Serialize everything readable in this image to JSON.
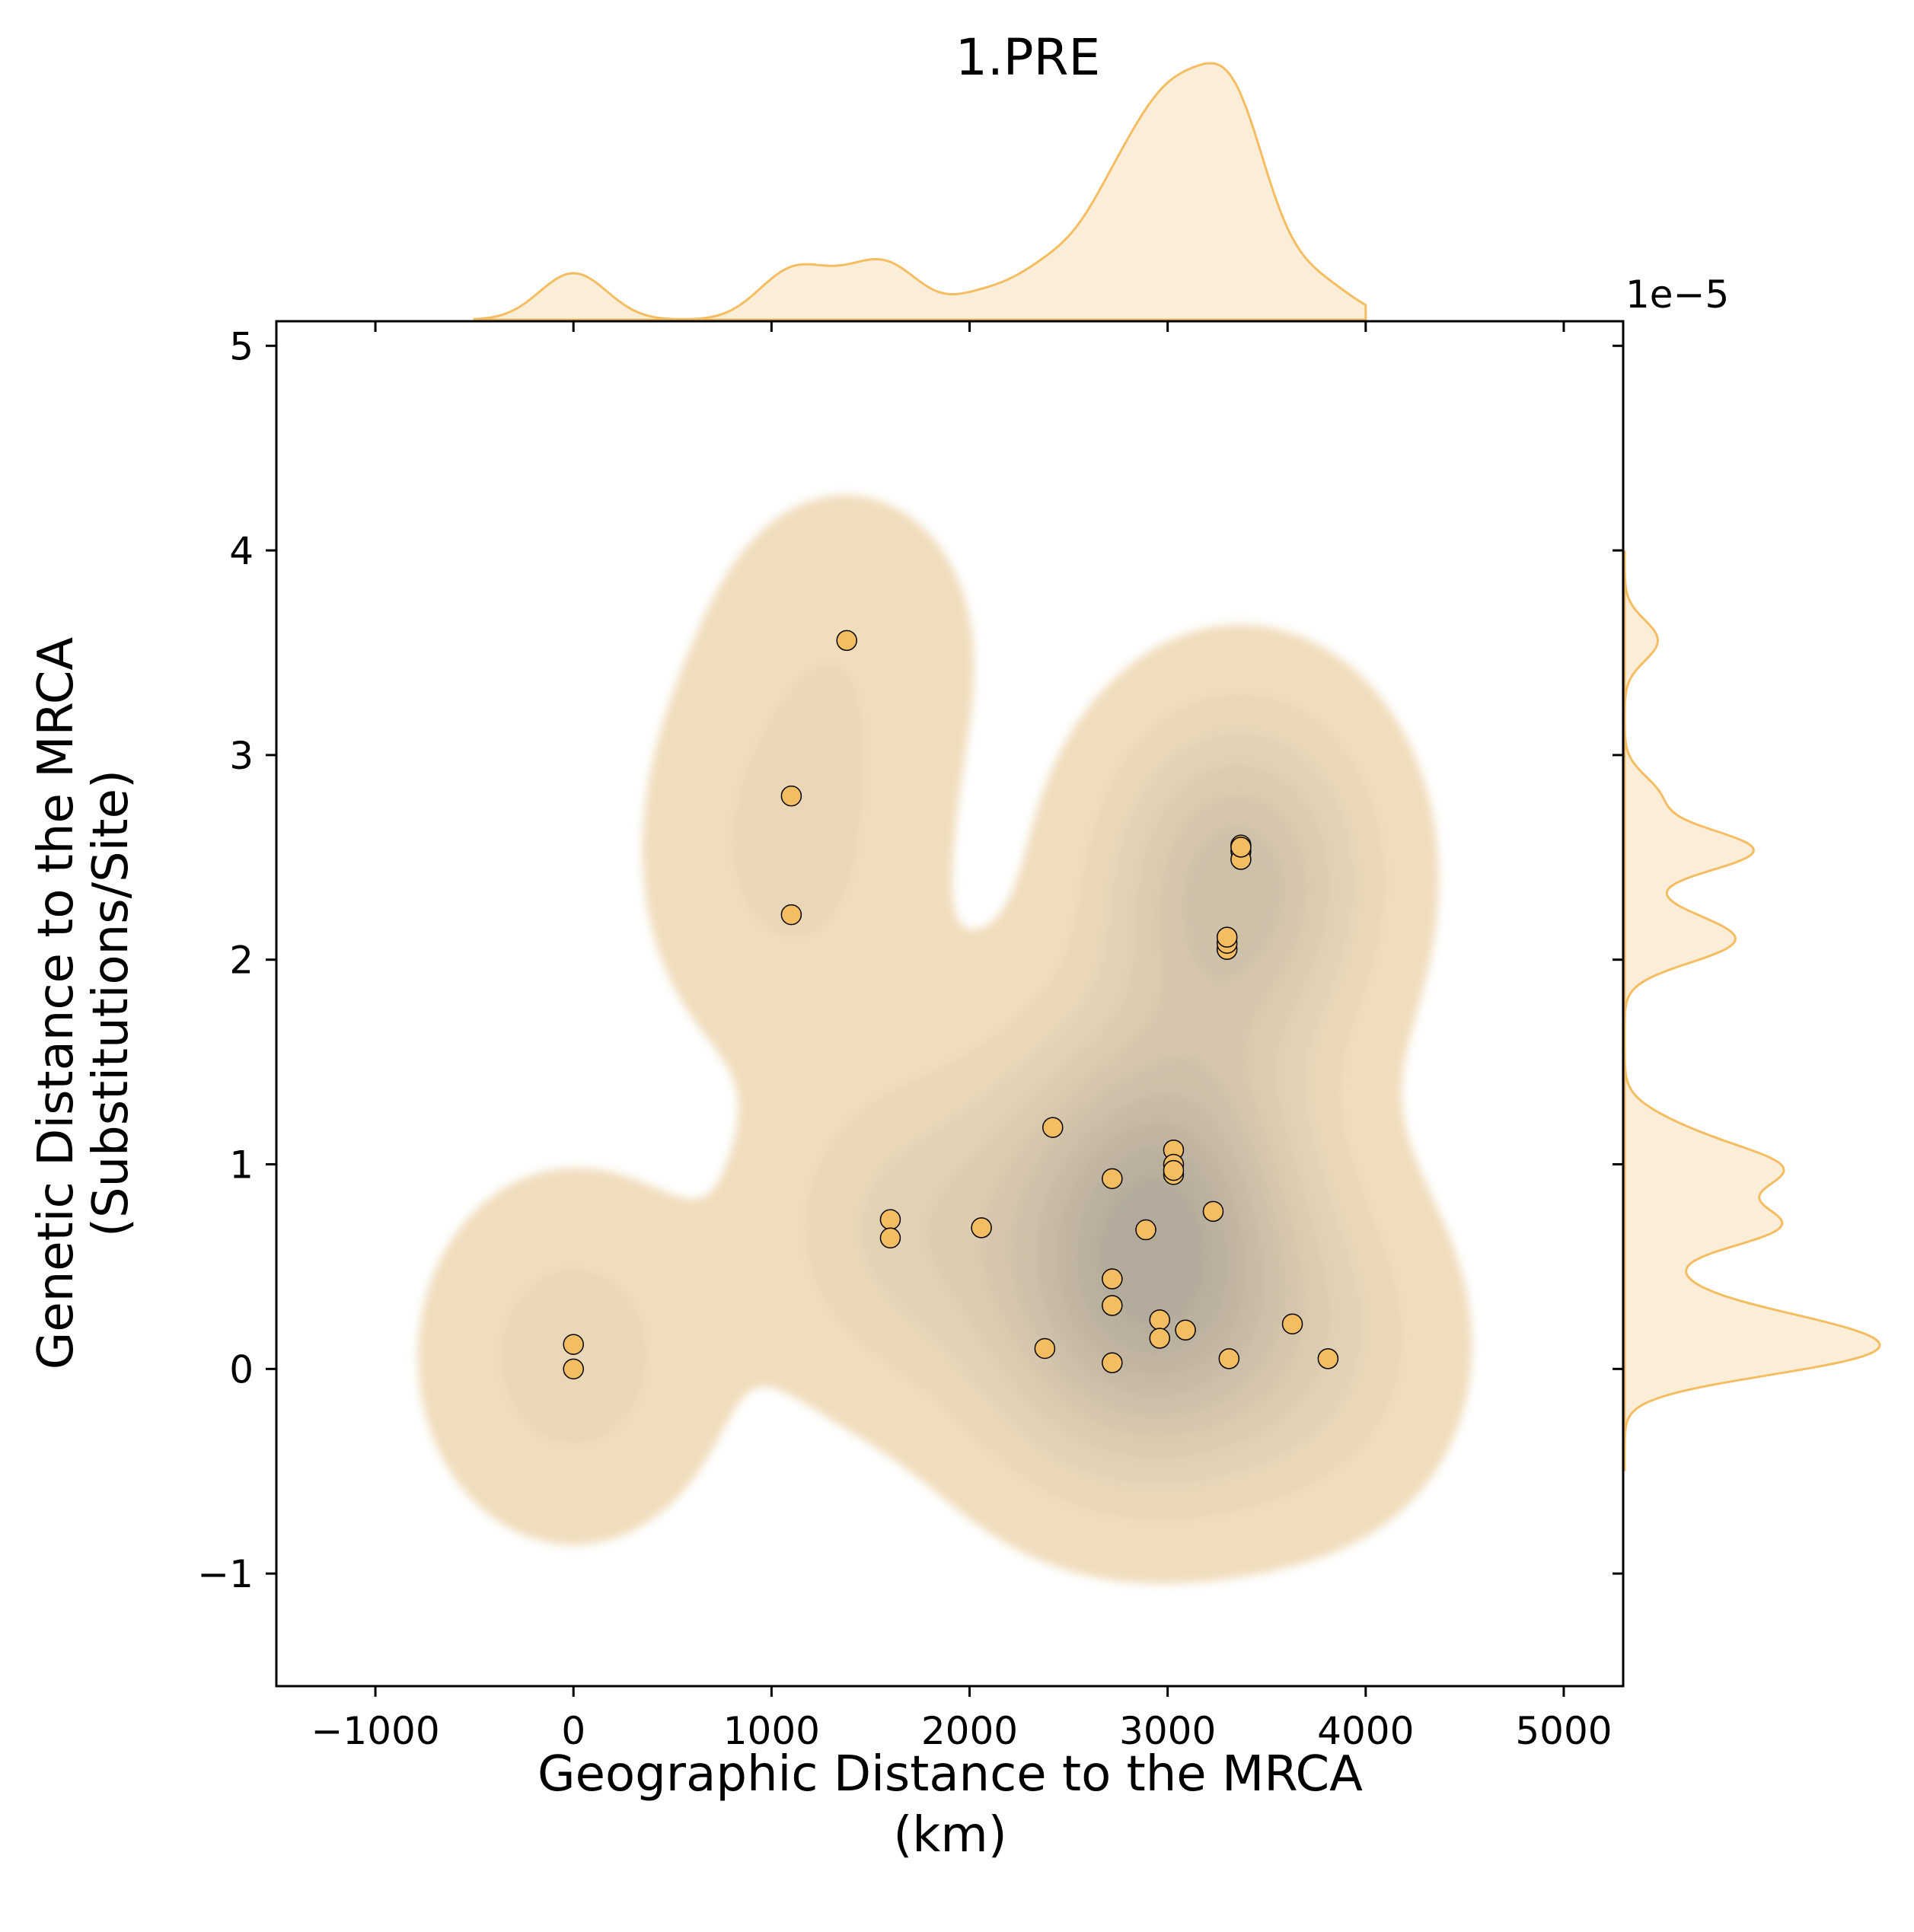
{
  "chart_data": {
    "type": "scatter",
    "title": "1.PRE",
    "xlabel": [
      "Geographic Distance to the MRCA",
      "(km)"
    ],
    "ylabel": [
      "Genetic Distance to the MRCA",
      "(Substitutions/Site)"
    ],
    "y_offset_text": "1e−5",
    "xlim": [
      -1500,
      5300
    ],
    "ylim": [
      -1.55,
      5.12
    ],
    "x_ticks": [
      -1000,
      0,
      1000,
      2000,
      3000,
      4000,
      5000
    ],
    "x_tick_labels": [
      "−1000",
      "0",
      "1000",
      "2000",
      "3000",
      "4000",
      "5000"
    ],
    "y_ticks": [
      -1,
      0,
      1,
      2,
      3,
      4,
      5
    ],
    "y_tick_labels": [
      "−1",
      "0",
      "1",
      "2",
      "3",
      "4",
      "5"
    ],
    "grid": false,
    "marker_color": "#f5bd61",
    "marker_edge": "#000000",
    "kde_fill_color": "#f0ddbc",
    "kde_dark_color": "#b3aa9b",
    "marginal_color": "#f5bd61",
    "marginal_fill": "#faeed9",
    "points": [
      {
        "x": 0,
        "y": 0.12
      },
      {
        "x": 0,
        "y": 0.0
      },
      {
        "x": 1100,
        "y": 2.8
      },
      {
        "x": 1100,
        "y": 2.22
      },
      {
        "x": 1380,
        "y": 3.56
      },
      {
        "x": 1600,
        "y": 0.73
      },
      {
        "x": 1600,
        "y": 0.64
      },
      {
        "x": 2060,
        "y": 0.69
      },
      {
        "x": 2380,
        "y": 0.1
      },
      {
        "x": 2420,
        "y": 1.18
      },
      {
        "x": 2720,
        "y": 0.93
      },
      {
        "x": 2720,
        "y": 0.44
      },
      {
        "x": 2720,
        "y": 0.31
      },
      {
        "x": 2720,
        "y": 0.03
      },
      {
        "x": 2890,
        "y": 0.68
      },
      {
        "x": 2960,
        "y": 0.24
      },
      {
        "x": 2960,
        "y": 0.15
      },
      {
        "x": 3030,
        "y": 1.07
      },
      {
        "x": 3030,
        "y": 1.0
      },
      {
        "x": 3030,
        "y": 0.95
      },
      {
        "x": 3030,
        "y": 0.97
      },
      {
        "x": 3090,
        "y": 0.19
      },
      {
        "x": 3230,
        "y": 0.77
      },
      {
        "x": 3300,
        "y": 2.05
      },
      {
        "x": 3300,
        "y": 2.08
      },
      {
        "x": 3300,
        "y": 2.11
      },
      {
        "x": 3310,
        "y": 0.05
      },
      {
        "x": 3370,
        "y": 2.56
      },
      {
        "x": 3370,
        "y": 2.53
      },
      {
        "x": 3370,
        "y": 2.49
      },
      {
        "x": 3370,
        "y": 2.55
      },
      {
        "x": 3630,
        "y": 0.22
      },
      {
        "x": 3810,
        "y": 0.05
      }
    ]
  }
}
